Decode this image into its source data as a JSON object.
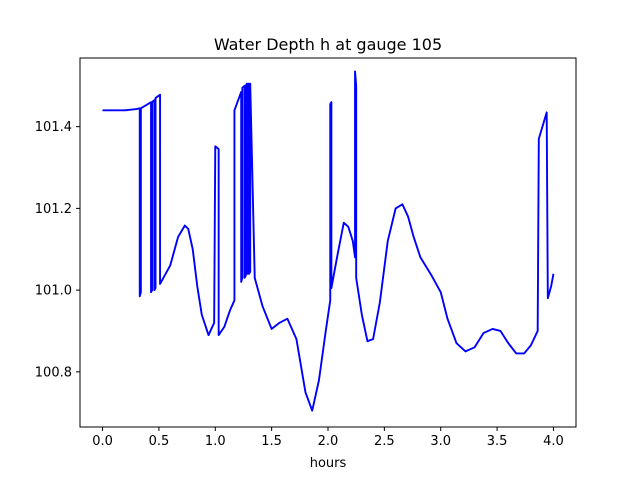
{
  "chart_data": {
    "type": "line",
    "title": "Water Depth h at gauge 105",
    "xlabel": "hours",
    "ylabel": "",
    "xlim": [
      -0.2,
      4.2
    ],
    "ylim": [
      100.665,
      101.568
    ],
    "xticks": [
      0.0,
      0.5,
      1.0,
      1.5,
      2.0,
      2.5,
      3.0,
      3.5,
      4.0
    ],
    "xtick_labels": [
      "0.0",
      "0.5",
      "1.0",
      "1.5",
      "2.0",
      "2.5",
      "3.0",
      "3.5",
      "4.0"
    ],
    "yticks": [
      100.8,
      101.0,
      101.2,
      101.4
    ],
    "ytick_labels": [
      "100.8",
      "101.0",
      "101.2",
      "101.4"
    ],
    "grid": false,
    "legend": "none",
    "series": [
      {
        "color": "#0000ff",
        "x": [
          0.0,
          0.1,
          0.2,
          0.3,
          0.33,
          0.33,
          0.34,
          0.34,
          0.43,
          0.43,
          0.44,
          0.44,
          0.46,
          0.46,
          0.47,
          0.47,
          0.51,
          0.51,
          0.52,
          0.6,
          0.67,
          0.73,
          0.76,
          0.8,
          0.84,
          0.88,
          0.94,
          0.99,
          1.0,
          1.0,
          1.03,
          1.03,
          1.08,
          1.13,
          1.17,
          1.17,
          1.23,
          1.23,
          1.24,
          1.24,
          1.26,
          1.26,
          1.27,
          1.27,
          1.28,
          1.28,
          1.29,
          1.29,
          1.3,
          1.3,
          1.31,
          1.31,
          1.35,
          1.42,
          1.5,
          1.57,
          1.64,
          1.72,
          1.8,
          1.86,
          1.92,
          1.98,
          2.02,
          2.02,
          2.03,
          2.03,
          2.08,
          2.14,
          2.18,
          2.22,
          2.24,
          2.24,
          2.25,
          2.25,
          2.3,
          2.35,
          2.4,
          2.46,
          2.53,
          2.6,
          2.66,
          2.71,
          2.76,
          2.82,
          2.92,
          3.0,
          3.06,
          3.14,
          3.22,
          3.3,
          3.38,
          3.46,
          3.53,
          3.6,
          3.67,
          3.74,
          3.8,
          3.86,
          3.87,
          3.87,
          3.94,
          3.94,
          3.95,
          3.95,
          3.98,
          4.0
        ],
        "y": [
          101.44,
          101.44,
          101.44,
          101.443,
          101.445,
          100.985,
          100.995,
          101.445,
          101.46,
          100.995,
          101.0,
          101.46,
          101.465,
          101.0,
          101.005,
          101.47,
          101.478,
          101.015,
          101.02,
          101.06,
          101.13,
          101.158,
          101.15,
          101.1,
          101.01,
          100.94,
          100.89,
          100.92,
          101.352,
          101.352,
          101.345,
          100.89,
          100.91,
          100.95,
          100.975,
          101.44,
          101.485,
          101.02,
          101.03,
          101.495,
          101.5,
          101.03,
          101.035,
          101.5,
          101.505,
          101.04,
          101.04,
          101.505,
          101.505,
          101.04,
          101.045,
          101.505,
          101.03,
          100.96,
          100.905,
          100.92,
          100.93,
          100.88,
          100.75,
          100.705,
          100.78,
          100.9,
          100.975,
          101.455,
          101.46,
          101.005,
          101.08,
          101.165,
          101.155,
          101.12,
          101.08,
          101.535,
          101.5,
          101.03,
          100.94,
          100.875,
          100.88,
          100.97,
          101.12,
          101.2,
          101.21,
          101.18,
          101.13,
          101.08,
          101.035,
          100.995,
          100.93,
          100.87,
          100.85,
          100.86,
          100.895,
          100.905,
          100.9,
          100.87,
          100.845,
          100.845,
          100.865,
          100.9,
          101.37,
          101.37,
          101.435,
          101.435,
          100.98,
          100.98,
          101.01,
          101.04
        ]
      }
    ]
  }
}
